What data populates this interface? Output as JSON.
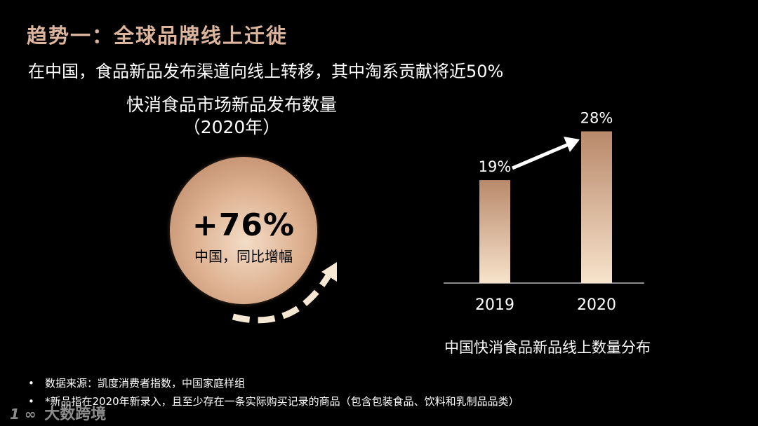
{
  "header": {
    "title": "趋势一：全球品牌线上迁徙",
    "subtitle": "在中国，食品新品发布渠道向线上转移，其中淘系贡献将近50%"
  },
  "left_panel": {
    "title_line1": "快消食品市场新品发布数量",
    "title_line2": "（2020年）",
    "stat_value": "+76%",
    "stat_caption": "中国，同比增幅",
    "colors": {
      "circle": "#deb292",
      "arrow": "#f6e7d3"
    }
  },
  "chart_data": {
    "type": "bar",
    "title": "中国快消食品新品线上数量分布",
    "categories": [
      "2019",
      "2020"
    ],
    "values": [
      19,
      28
    ],
    "value_labels": [
      "19%",
      "28%"
    ],
    "ylim": [
      0,
      30
    ],
    "grid": false,
    "legend": "none",
    "colors": {
      "bar_top": "#b9896b",
      "bar_bottom": "#f7e3cb",
      "axis": "#bbbbbb",
      "trend_arrow": "#ffffff"
    }
  },
  "footnotes": [
    {
      "bullet": "•",
      "text": "数据来源：凯度消费者指数，中国家庭样组"
    },
    {
      "bullet": "•",
      "text": "*新品指在2020年新录入，且至少存在一条实际购买记录的商品（包含包装食品、饮料和乳制品品类）"
    }
  ],
  "watermark": {
    "logo": "1 ∞",
    "text": "大数跨境"
  }
}
